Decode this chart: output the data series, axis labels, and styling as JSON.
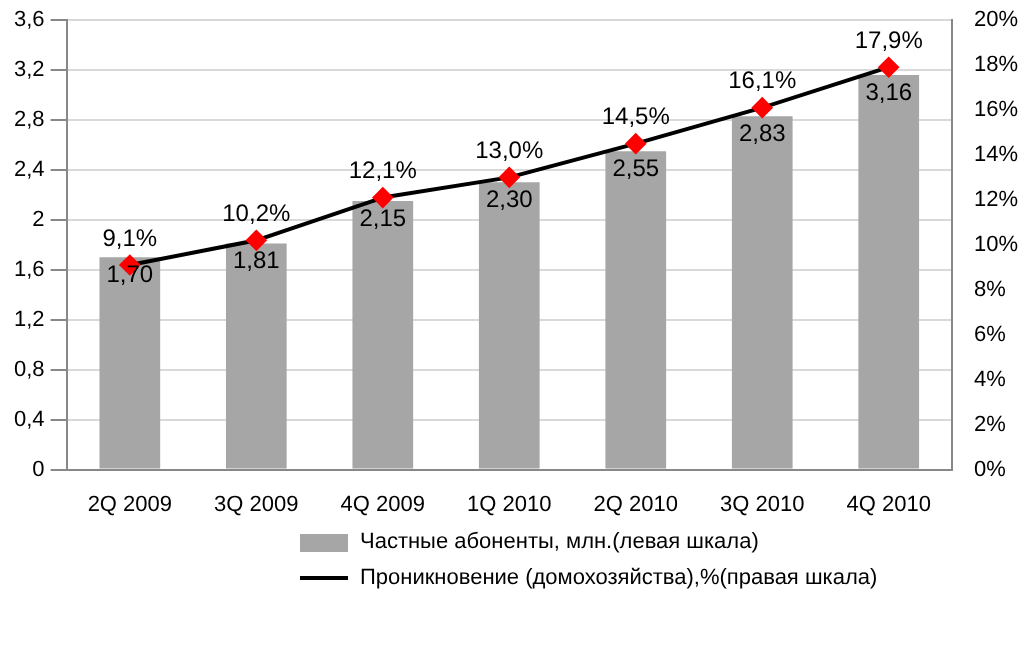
{
  "chart_data": {
    "type": "bar",
    "categories": [
      "2Q 2009",
      "3Q 2009",
      "4Q 2009",
      "1Q 2010",
      "2Q 2010",
      "3Q 2010",
      "4Q 2010"
    ],
    "series": [
      {
        "name": "Частные абоненты, млн.(левая шкала)",
        "color": "#a6a6a6",
        "values": [
          1.7,
          1.81,
          2.15,
          2.3,
          2.55,
          2.83,
          3.16
        ],
        "value_labels": [
          "1,70",
          "1,81",
          "2,15",
          "2,30",
          "2,55",
          "2,83",
          "3,16"
        ]
      },
      {
        "name": "Проникновение (домохозяйства),%(правая шкала)",
        "type": "line",
        "axis": "y2",
        "color": "#000000",
        "marker": "diamond",
        "values": [
          9.1,
          10.2,
          12.1,
          13.0,
          14.5,
          16.1,
          17.9
        ],
        "value_labels": [
          "9,1%",
          "10,2%",
          "12,1%",
          "13,0%",
          "14,5%",
          "16,1%",
          "17,9%"
        ]
      }
    ],
    "ylim": [
      0,
      3.6
    ],
    "yticks": [
      0,
      {
        "value": 0.4,
        "label": "0,4"
      },
      {
        "value": 0.8,
        "label": "0,8"
      },
      {
        "value": 1.2,
        "label": "1,2"
      },
      {
        "value": 1.6,
        "label": "1,6"
      },
      2,
      {
        "value": 2.4,
        "label": "2,4"
      },
      {
        "value": 2.8,
        "label": "2,8"
      },
      {
        "value": 3.2,
        "label": "3,2"
      },
      {
        "value": 3.6,
        "label": "3,6"
      }
    ],
    "y2lim": [
      0,
      20
    ],
    "y2ticks": [
      {
        "value": 0,
        "label": "0%"
      },
      {
        "value": 2,
        "label": "2%"
      },
      {
        "value": 4,
        "label": "4%"
      },
      {
        "value": 6,
        "label": "6%"
      },
      {
        "value": 8,
        "label": "8%"
      },
      {
        "value": 10,
        "label": "10%"
      },
      {
        "value": 12,
        "label": "12%"
      },
      {
        "value": 14,
        "label": "14%"
      },
      {
        "value": 16,
        "label": "16%"
      },
      {
        "value": 18,
        "label": "18%"
      },
      {
        "value": 20,
        "label": "20%"
      }
    ],
    "grid": "y",
    "legend": "bottom"
  }
}
